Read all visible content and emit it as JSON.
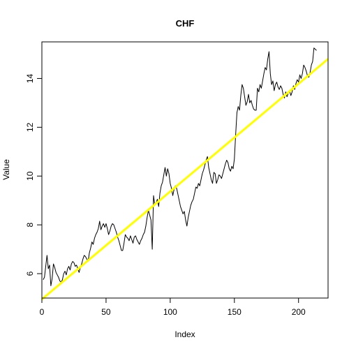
{
  "chart_data": {
    "type": "line",
    "title": "CHF",
    "xlabel": "Index",
    "ylabel": "Value",
    "xlim": [
      0,
      223
    ],
    "ylim": [
      5,
      15.5
    ],
    "xticks": [
      0,
      50,
      100,
      150,
      200
    ],
    "yticks": [
      6,
      8,
      10,
      12,
      14
    ],
    "x_tick_labels": [
      "0",
      "50",
      "100",
      "150",
      "200"
    ],
    "y_tick_labels": [
      "6",
      "8",
      "10",
      "12",
      "14"
    ],
    "grid": false,
    "legend": "none",
    "series": [
      {
        "style": "line",
        "color": "#000000",
        "points": [
          [
            1,
            5.75
          ],
          [
            2,
            5.85
          ],
          [
            3,
            6.3
          ],
          [
            4,
            6.75
          ],
          [
            5,
            6.2
          ],
          [
            6,
            6.35
          ],
          [
            7,
            5.5
          ],
          [
            8,
            5.8
          ],
          [
            9,
            6.4
          ],
          [
            10,
            6.25
          ],
          [
            11,
            6.05
          ],
          [
            12,
            5.95
          ],
          [
            13,
            5.85
          ],
          [
            14,
            5.7
          ],
          [
            15,
            5.65
          ],
          [
            16,
            5.75
          ],
          [
            17,
            6.0
          ],
          [
            18,
            6.1
          ],
          [
            19,
            5.95
          ],
          [
            20,
            6.2
          ],
          [
            21,
            6.3
          ],
          [
            22,
            6.15
          ],
          [
            23,
            6.4
          ],
          [
            24,
            6.5
          ],
          [
            25,
            6.45
          ],
          [
            26,
            6.3
          ],
          [
            27,
            6.35
          ],
          [
            28,
            6.2
          ],
          [
            29,
            6.05
          ],
          [
            30,
            6.25
          ],
          [
            31,
            6.4
          ],
          [
            32,
            6.6
          ],
          [
            33,
            6.75
          ],
          [
            34,
            6.7
          ],
          [
            35,
            6.6
          ],
          [
            36,
            6.5
          ],
          [
            37,
            6.85
          ],
          [
            38,
            7.05
          ],
          [
            39,
            7.3
          ],
          [
            40,
            7.2
          ],
          [
            41,
            7.45
          ],
          [
            42,
            7.6
          ],
          [
            43,
            7.7
          ],
          [
            44,
            7.85
          ],
          [
            45,
            8.15
          ],
          [
            46,
            7.8
          ],
          [
            47,
            7.95
          ],
          [
            48,
            8.05
          ],
          [
            49,
            7.9
          ],
          [
            50,
            8.05
          ],
          [
            51,
            7.85
          ],
          [
            52,
            7.6
          ],
          [
            53,
            7.75
          ],
          [
            54,
            7.95
          ],
          [
            55,
            8.05
          ],
          [
            56,
            8.0
          ],
          [
            57,
            7.85
          ],
          [
            58,
            7.7
          ],
          [
            59,
            7.5
          ],
          [
            60,
            7.35
          ],
          [
            61,
            7.15
          ],
          [
            62,
            6.95
          ],
          [
            63,
            6.95
          ],
          [
            64,
            7.25
          ],
          [
            65,
            7.6
          ],
          [
            66,
            7.5
          ],
          [
            67,
            7.45
          ],
          [
            68,
            7.35
          ],
          [
            69,
            7.55
          ],
          [
            70,
            7.4
          ],
          [
            71,
            7.25
          ],
          [
            72,
            7.5
          ],
          [
            73,
            7.55
          ],
          [
            74,
            7.4
          ],
          [
            75,
            7.3
          ],
          [
            76,
            7.2
          ],
          [
            77,
            7.35
          ],
          [
            78,
            7.45
          ],
          [
            79,
            7.6
          ],
          [
            80,
            7.7
          ],
          [
            81,
            7.95
          ],
          [
            82,
            8.3
          ],
          [
            83,
            8.6
          ],
          [
            84,
            8.4
          ],
          [
            85,
            8.2
          ],
          [
            86,
            7.0
          ],
          [
            87,
            9.2
          ],
          [
            88,
            8.8
          ],
          [
            89,
            8.9
          ],
          [
            90,
            9.05
          ],
          [
            91,
            8.75
          ],
          [
            92,
            9.3
          ],
          [
            93,
            9.6
          ],
          [
            94,
            9.75
          ],
          [
            95,
            10.05
          ],
          [
            96,
            10.35
          ],
          [
            97,
            10.0
          ],
          [
            98,
            10.3
          ],
          [
            99,
            10.1
          ],
          [
            100,
            9.7
          ],
          [
            101,
            9.5
          ],
          [
            102,
            9.2
          ],
          [
            103,
            9.45
          ],
          [
            104,
            9.6
          ],
          [
            105,
            9.5
          ],
          [
            106,
            9.25
          ],
          [
            107,
            9.0
          ],
          [
            108,
            8.75
          ],
          [
            109,
            8.6
          ],
          [
            110,
            8.45
          ],
          [
            111,
            8.55
          ],
          [
            112,
            8.2
          ],
          [
            113,
            7.95
          ],
          [
            114,
            8.3
          ],
          [
            115,
            8.55
          ],
          [
            116,
            8.8
          ],
          [
            117,
            8.95
          ],
          [
            118,
            9.05
          ],
          [
            119,
            9.3
          ],
          [
            120,
            9.55
          ],
          [
            121,
            9.5
          ],
          [
            122,
            9.7
          ],
          [
            123,
            9.6
          ],
          [
            124,
            9.85
          ],
          [
            125,
            10.1
          ],
          [
            126,
            10.25
          ],
          [
            127,
            10.45
          ],
          [
            128,
            10.65
          ],
          [
            129,
            10.8
          ],
          [
            130,
            10.35
          ],
          [
            131,
            10.1
          ],
          [
            132,
            9.85
          ],
          [
            133,
            9.7
          ],
          [
            134,
            10.15
          ],
          [
            135,
            10.1
          ],
          [
            136,
            9.7
          ],
          [
            137,
            9.85
          ],
          [
            138,
            10.05
          ],
          [
            139,
            10.0
          ],
          [
            140,
            9.9
          ],
          [
            141,
            10.1
          ],
          [
            142,
            10.3
          ],
          [
            143,
            10.5
          ],
          [
            144,
            10.65
          ],
          [
            145,
            10.55
          ],
          [
            146,
            10.3
          ],
          [
            147,
            10.2
          ],
          [
            148,
            10.4
          ],
          [
            149,
            10.3
          ],
          [
            150,
            10.7
          ],
          [
            151,
            11.7
          ],
          [
            152,
            12.6
          ],
          [
            153,
            12.85
          ],
          [
            154,
            12.7
          ],
          [
            155,
            13.3
          ],
          [
            156,
            13.75
          ],
          [
            157,
            13.6
          ],
          [
            158,
            13.25
          ],
          [
            159,
            12.9
          ],
          [
            160,
            13.05
          ],
          [
            161,
            13.35
          ],
          [
            162,
            13.0
          ],
          [
            163,
            13.1
          ],
          [
            164,
            12.9
          ],
          [
            165,
            12.75
          ],
          [
            166,
            12.7
          ],
          [
            167,
            12.7
          ],
          [
            168,
            13.6
          ],
          [
            169,
            13.45
          ],
          [
            170,
            13.75
          ],
          [
            171,
            13.6
          ],
          [
            172,
            13.9
          ],
          [
            173,
            14.2
          ],
          [
            174,
            14.45
          ],
          [
            175,
            14.35
          ],
          [
            176,
            14.8
          ],
          [
            177,
            15.1
          ],
          [
            178,
            14.2
          ],
          [
            179,
            13.75
          ],
          [
            180,
            13.9
          ],
          [
            181,
            13.5
          ],
          [
            182,
            13.75
          ],
          [
            183,
            13.85
          ],
          [
            184,
            13.65
          ],
          [
            185,
            13.55
          ],
          [
            186,
            13.7
          ],
          [
            187,
            13.6
          ],
          [
            188,
            13.35
          ],
          [
            189,
            13.2
          ],
          [
            190,
            13.45
          ],
          [
            191,
            13.25
          ],
          [
            192,
            13.4
          ],
          [
            193,
            13.5
          ],
          [
            194,
            13.3
          ],
          [
            195,
            13.45
          ],
          [
            196,
            13.7
          ],
          [
            197,
            13.55
          ],
          [
            198,
            13.8
          ],
          [
            199,
            13.95
          ],
          [
            200,
            13.85
          ],
          [
            201,
            14.15
          ],
          [
            202,
            14.0
          ],
          [
            203,
            14.2
          ],
          [
            204,
            14.55
          ],
          [
            205,
            14.45
          ],
          [
            206,
            14.3
          ],
          [
            207,
            14.1
          ],
          [
            208,
            14.05
          ],
          [
            209,
            14.25
          ],
          [
            210,
            14.55
          ],
          [
            211,
            14.7
          ],
          [
            212,
            15.25
          ],
          [
            213,
            15.2
          ],
          [
            214,
            15.15
          ]
        ]
      },
      {
        "style": "trend",
        "color": "#ffff00",
        "points": [
          [
            0,
            4.95
          ],
          [
            223,
            14.8
          ]
        ]
      }
    ]
  }
}
